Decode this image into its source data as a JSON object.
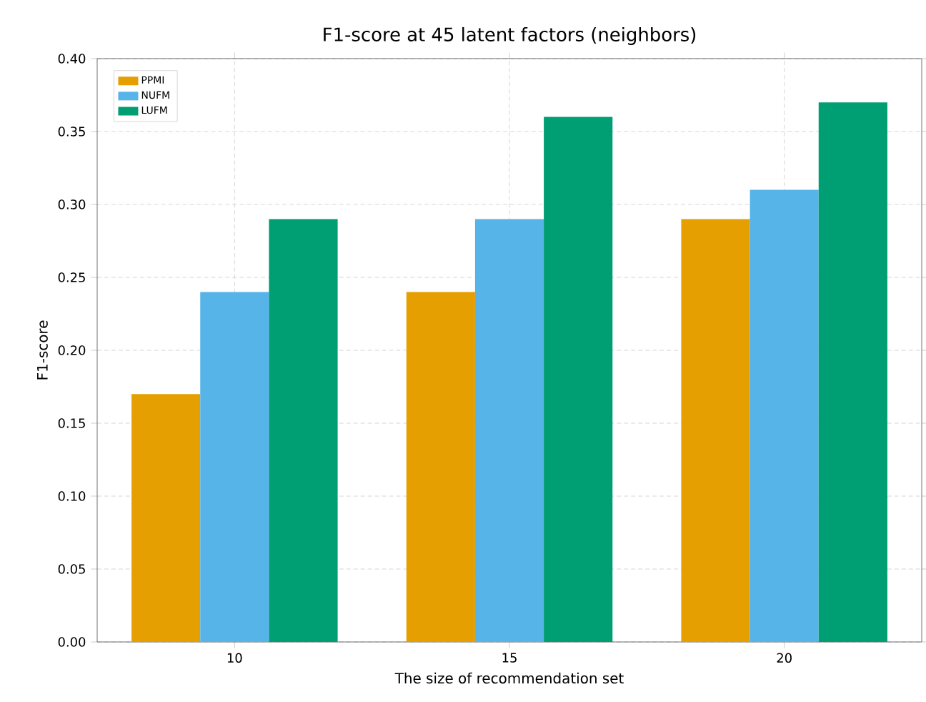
{
  "chart_data": {
    "type": "bar",
    "title": "F1-score at 45 latent factors (neighbors)",
    "xlabel": "The size of recommendation set",
    "ylabel": "F1-score",
    "categories": [
      "10",
      "15",
      "20"
    ],
    "series": [
      {
        "name": "PPMI",
        "color": "#e69f00",
        "values": [
          0.17,
          0.24,
          0.29
        ]
      },
      {
        "name": "NUFM",
        "color": "#56b4e9",
        "values": [
          0.24,
          0.29,
          0.31
        ]
      },
      {
        "name": "LUFM",
        "color": "#009e73",
        "values": [
          0.29,
          0.36,
          0.37
        ]
      }
    ],
    "ylim": [
      0,
      0.4
    ],
    "yticks": [
      {
        "value": 0,
        "label": "0.00"
      },
      {
        "value": 0.05,
        "label": "0.05"
      },
      {
        "value": 0.1,
        "label": "0.10"
      },
      {
        "value": 0.15,
        "label": "0.15"
      },
      {
        "value": 0.2,
        "label": "0.20"
      },
      {
        "value": 0.25,
        "label": "0.25"
      },
      {
        "value": 0.3,
        "label": "0.30"
      },
      {
        "value": 0.35,
        "label": "0.35"
      },
      {
        "value": 0.4,
        "label": "0.40"
      }
    ],
    "grid": true,
    "legend": "top left"
  }
}
